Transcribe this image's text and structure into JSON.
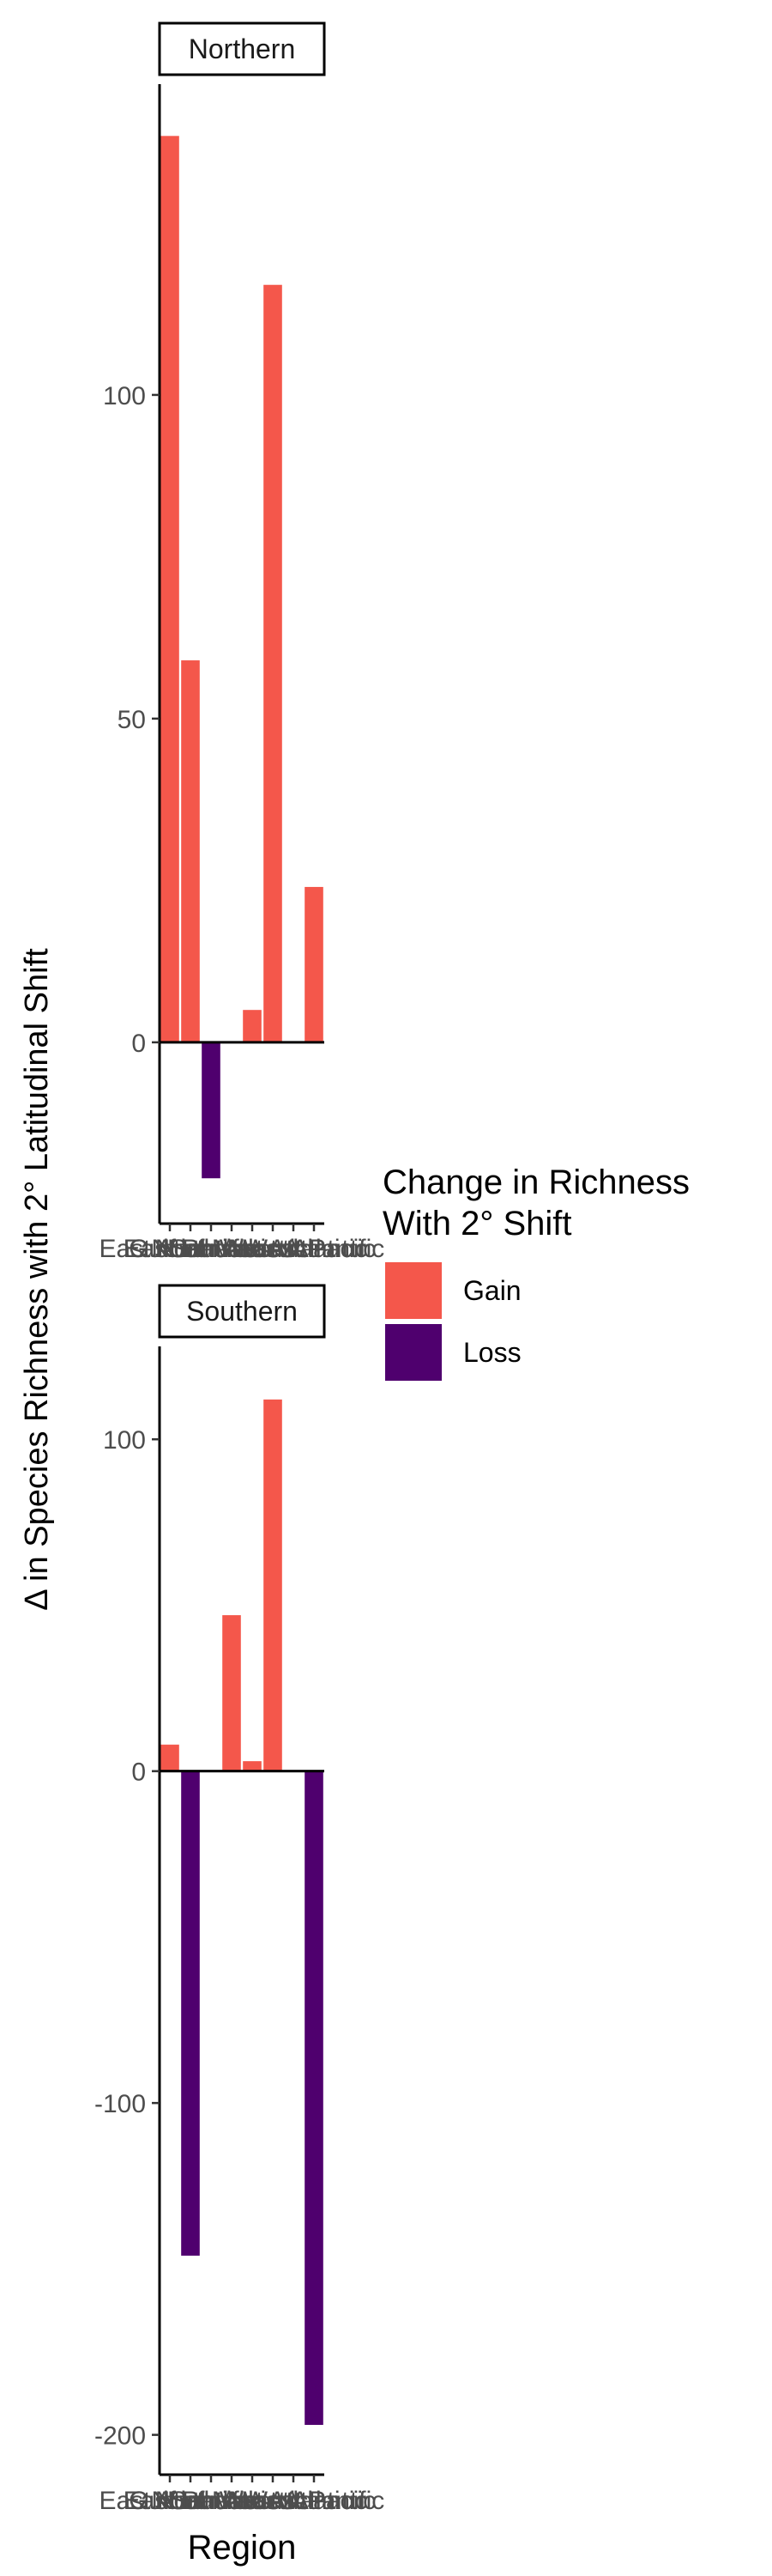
{
  "chart_data": {
    "type": "bar",
    "xlabel": "Region",
    "ylabel": "Δ in Species Richness with 2° Latitudinal Shift",
    "categories": [
      "East Atlantic",
      "East Pacific",
      "Gulf of Mexico",
      "North Atlantic",
      "Northeast Atlantic",
      "Southeast Atlantic",
      "West Atlantic",
      "West Pacific"
    ],
    "panels": [
      {
        "name": "Northern",
        "ylim": [
          -28,
          148
        ],
        "yticks": [
          0,
          50,
          100
        ],
        "values": [
          140,
          59,
          -21,
          0,
          5,
          117,
          0,
          24
        ]
      },
      {
        "name": "Southern",
        "ylim": [
          -212,
          128
        ],
        "yticks": [
          -200,
          -100,
          0,
          100
        ],
        "values": [
          8,
          -146,
          0,
          47,
          3,
          112,
          0,
          -197
        ]
      }
    ],
    "legend": {
      "title": [
        "Change in Richness",
        "With 2° Shift"
      ],
      "placement": "right",
      "entries": [
        {
          "label": "Gain",
          "color": "#F4574B"
        },
        {
          "label": "Loss",
          "color": "#4F006E"
        }
      ]
    },
    "grid": false
  }
}
